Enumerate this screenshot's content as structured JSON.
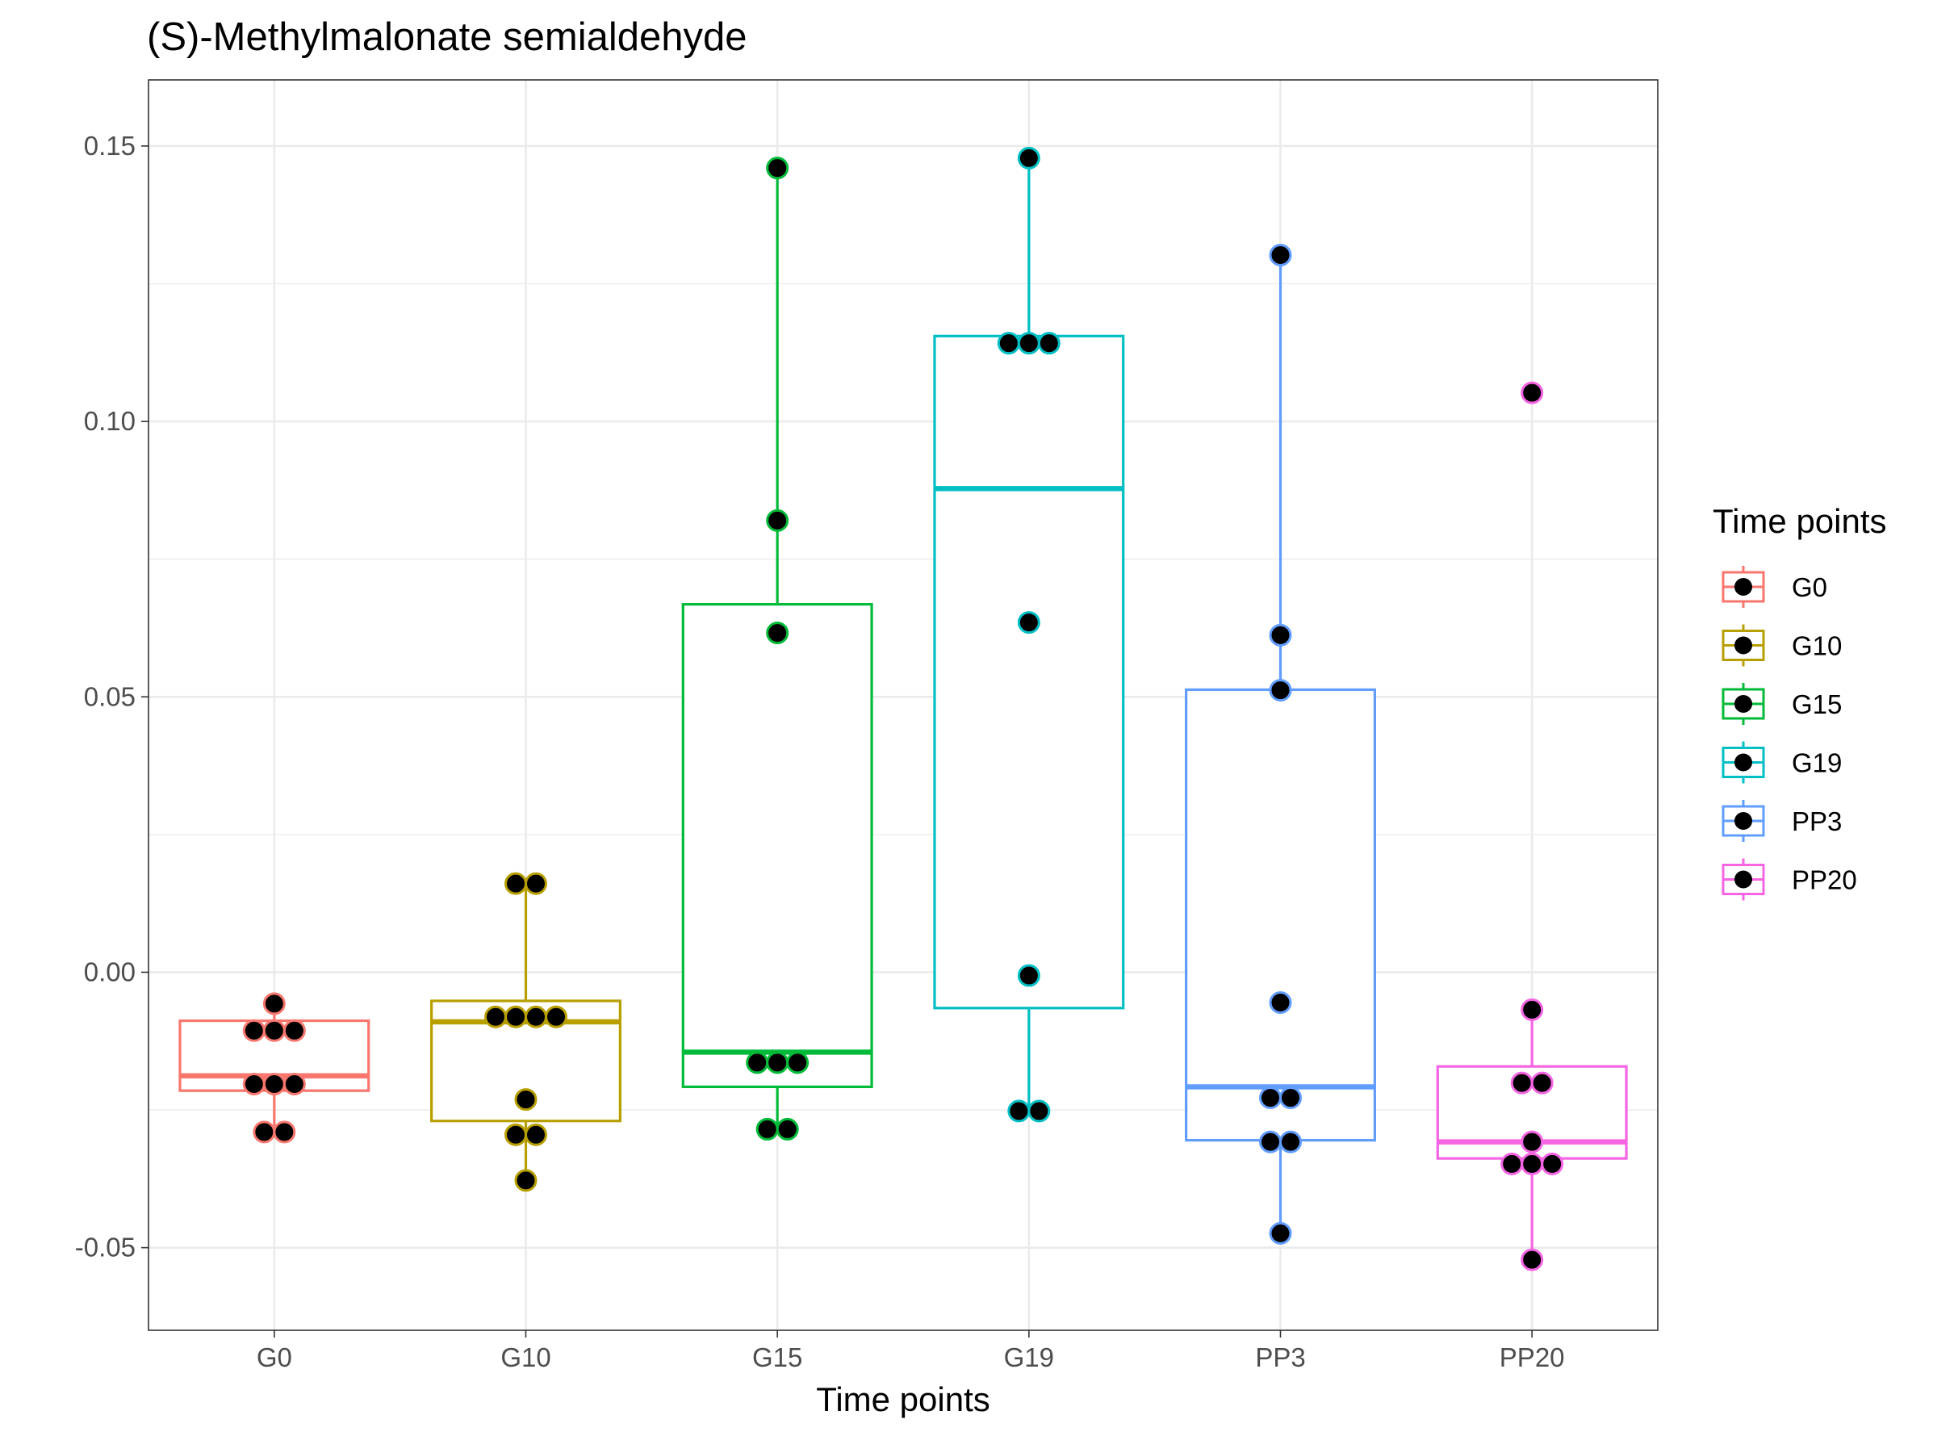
{
  "chart_data": {
    "type": "box",
    "title": "(S)-Methylmalonate semialdehyde",
    "xlabel": "Time points",
    "ylabel": "",
    "ylim": [
      -0.065,
      0.162
    ],
    "y_ticks": [
      -0.05,
      0.0,
      0.05,
      0.1,
      0.15
    ],
    "y_tick_labels": [
      "-0.05",
      "0.00",
      "0.05",
      "0.10",
      "0.15"
    ],
    "grid": true,
    "legend": {
      "title": "Time points",
      "position": "right"
    },
    "categories": [
      "G0",
      "G10",
      "G15",
      "G19",
      "PP3",
      "PP20"
    ],
    "series": [
      {
        "name": "G0",
        "color": "#F8766D",
        "box": {
          "lower_whisker": -0.029,
          "q1": -0.0215,
          "median": -0.0188,
          "q3": -0.0088,
          "upper_whisker": -0.0057
        },
        "points": [
          -0.0057,
          -0.0106,
          -0.0106,
          -0.0106,
          -0.0203,
          -0.0203,
          -0.0203,
          -0.029,
          -0.029
        ]
      },
      {
        "name": "G10",
        "color": "#B79F00",
        "box": {
          "lower_whisker": -0.0378,
          "q1": -0.027,
          "median": -0.009,
          "q3": -0.0052,
          "upper_whisker": 0.0164
        },
        "points": [
          0.0161,
          0.0161,
          -0.0081,
          -0.0081,
          -0.0081,
          -0.0081,
          -0.0231,
          -0.0295,
          -0.0295,
          -0.0378
        ]
      },
      {
        "name": "G15",
        "color": "#00BA38",
        "box": {
          "lower_whisker": -0.0285,
          "q1": -0.0208,
          "median": -0.0145,
          "q3": 0.0668,
          "upper_whisker": 0.146
        },
        "points": [
          0.146,
          0.082,
          0.0616,
          -0.0164,
          -0.0164,
          -0.0164,
          -0.0285,
          -0.0285
        ]
      },
      {
        "name": "G19",
        "color": "#00BFC4",
        "box": {
          "lower_whisker": -0.0252,
          "q1": -0.0065,
          "median": 0.0878,
          "q3": 0.1155,
          "upper_whisker": 0.1478
        },
        "points": [
          0.1478,
          0.1142,
          0.1142,
          0.1142,
          0.0635,
          -0.0006,
          -0.0252,
          -0.0252
        ]
      },
      {
        "name": "PP3",
        "color": "#619CFF",
        "box": {
          "lower_whisker": -0.0474,
          "q1": -0.0305,
          "median": -0.0208,
          "q3": 0.0513,
          "upper_whisker": 0.1302
        },
        "points": [
          0.1302,
          0.0612,
          0.0512,
          -0.0055,
          -0.0228,
          -0.0228,
          -0.0308,
          -0.0308,
          -0.0474
        ]
      },
      {
        "name": "PP20",
        "color": "#F564E3",
        "box": {
          "lower_whisker": -0.0522,
          "q1": -0.0338,
          "median": -0.0308,
          "q3": -0.0171,
          "upper_whisker": -0.0068
        },
        "outliers": [
          0.1052
        ],
        "points": [
          0.1052,
          -0.0068,
          -0.0201,
          -0.0201,
          -0.0308,
          -0.0348,
          -0.0348,
          -0.0348,
          -0.0522
        ]
      }
    ]
  }
}
